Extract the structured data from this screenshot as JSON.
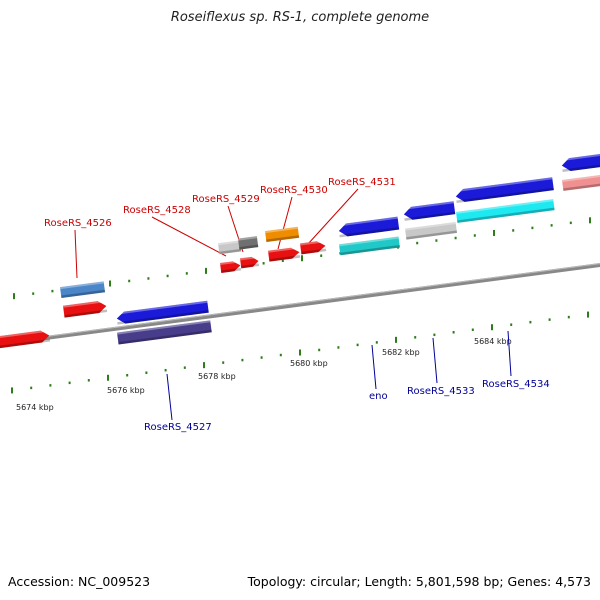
{
  "title": "Roseiflexus sp. RS-1, complete genome",
  "footer": {
    "accession": "Accession: NC_009523",
    "summary": "Topology: circular; Length: 5,801,598 bp; Genes: 4,573"
  },
  "colors": {
    "top_label": "#cc0000",
    "bottom_label": "#000099",
    "tick": "#2e7d1a",
    "backbone": "#888888"
  },
  "scale": {
    "unit": "kbp",
    "labels": [
      {
        "kb": 5674,
        "text": "5674 kbp"
      },
      {
        "kb": 5676,
        "text": "5676 kbp"
      },
      {
        "kb": 5678,
        "text": "5678 kbp"
      },
      {
        "kb": 5680,
        "text": "5680 kbp"
      },
      {
        "kb": 5682,
        "text": "5682 kbp"
      },
      {
        "kb": 5684,
        "text": "5684 kbp"
      }
    ]
  },
  "gene_labels_top": [
    {
      "text": "RoseRS_4526"
    },
    {
      "text": "RoseRS_4528"
    },
    {
      "text": "RoseRS_4529"
    },
    {
      "text": "RoseRS_4530"
    },
    {
      "text": "RoseRS_4531"
    }
  ],
  "gene_labels_bottom": [
    {
      "text": "RoseRS_4527"
    },
    {
      "text": "eno"
    },
    {
      "text": "RoseRS_4533"
    },
    {
      "text": "RoseRS_4534"
    }
  ],
  "genes": [
    {
      "color": "#e81010",
      "strand": "+"
    },
    {
      "color": "#4a86c8",
      "strand": "0"
    },
    {
      "color": "#e81010",
      "strand": "+"
    },
    {
      "color": "#1a1ad8",
      "strand": "-"
    },
    {
      "color": "#483d8b",
      "strand": "0"
    },
    {
      "color": "#c8c8c8",
      "strand": "0"
    },
    {
      "color": "#707070",
      "strand": "0"
    },
    {
      "color": "#e81010",
      "strand": "+"
    },
    {
      "color": "#e81010",
      "strand": "+"
    },
    {
      "color": "#f08c00",
      "strand": "0"
    },
    {
      "color": "#e81010",
      "strand": "+"
    },
    {
      "color": "#e81010",
      "strand": "+"
    },
    {
      "color": "#1a1ad8",
      "strand": "-"
    },
    {
      "color": "#20c8c8",
      "strand": "0"
    },
    {
      "color": "#1a1ad8",
      "strand": "-"
    },
    {
      "color": "#c8c8c8",
      "strand": "0"
    },
    {
      "color": "#1a1ad8",
      "strand": "-"
    },
    {
      "color": "#1ee8f0",
      "strand": "0"
    },
    {
      "color": "#1a1ad8",
      "strand": "-"
    },
    {
      "color": "#f09090",
      "strand": "0"
    }
  ]
}
